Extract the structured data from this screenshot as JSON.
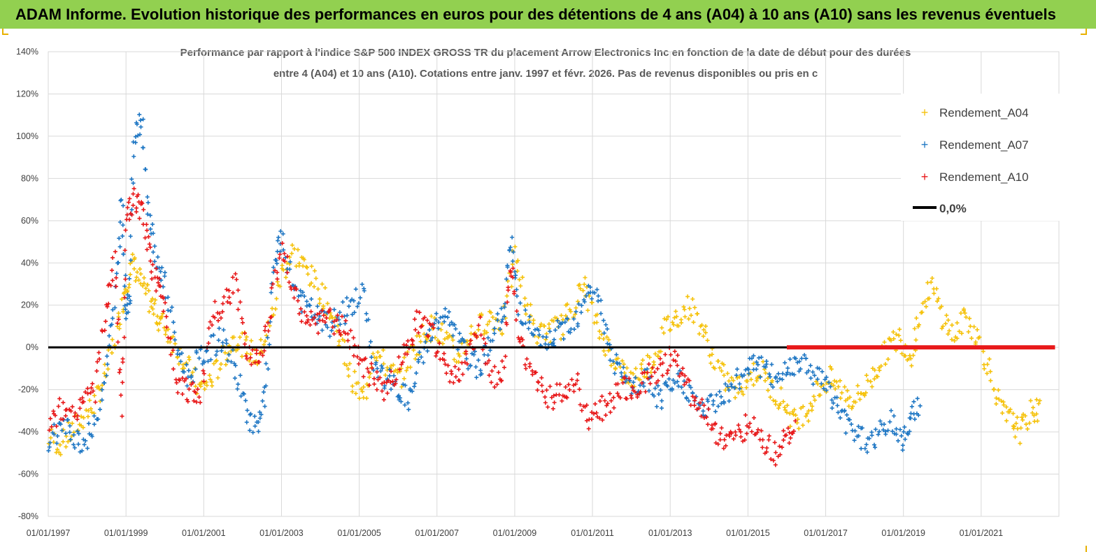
{
  "banner": {
    "title": "ADAM Informe. Evolution historique des performances en euros pour des détentions de 4 ans (A04) à 10 ans (A10) sans les revenus éventuels"
  },
  "colors": {
    "banner": "#92d050",
    "A04": "#f5c20b",
    "A07": "#1f77c4",
    "A10": "#e8191a",
    "zero": "#000000",
    "grid": "#d9d9d9"
  },
  "chart_data": {
    "type": "scatter",
    "title_line1": "Performance par rapport à l'indice S&P 500 INDEX GROSS TR  du placement Arrow Electronics Inc en fonction de la date de début pour des durées",
    "title_line2": "entre 4 (A04) et 10 ans (A10). Cotations entre janv. 1997 et févr. 2026. Pas de revenus disponibles ou pris en c",
    "xlabel": "",
    "ylabel": "",
    "xlim": [
      1997.0,
      2023.0
    ],
    "ylim": [
      -80,
      140
    ],
    "y_ticks": [
      140,
      120,
      100,
      80,
      60,
      40,
      20,
      0,
      -20,
      -40,
      -60,
      -80
    ],
    "y_tick_labels": [
      "140%",
      "120%",
      "100%",
      "80%",
      "60%",
      "40%",
      "20%",
      "0%",
      "-20%",
      "-40%",
      "-60%",
      "-80%"
    ],
    "x_ticks": [
      1997,
      1999,
      2001,
      2003,
      2005,
      2007,
      2009,
      2011,
      2013,
      2015,
      2017,
      2019,
      2021
    ],
    "x_tick_labels": [
      "01/01/1997",
      "01/01/1999",
      "01/01/2001",
      "01/01/2003",
      "01/01/2005",
      "01/01/2007",
      "01/01/2009",
      "01/01/2011",
      "01/01/2013",
      "01/01/2015",
      "01/01/2017",
      "01/01/2019",
      "01/01/2021"
    ],
    "grid": true,
    "legend_position": "top-right",
    "series": [
      {
        "name": "Rendement_A04",
        "marker": "+",
        "x": [
          1997.0,
          1997.3,
          1997.6,
          1997.9,
          1998.2,
          1998.5,
          1998.8,
          1999.0,
          1999.2,
          1999.4,
          1999.6,
          1999.8,
          2000.0,
          2000.3,
          2000.6,
          2000.9,
          2001.2,
          2001.5,
          2001.8,
          2002.1,
          2002.4,
          2002.7,
          2003.0,
          2003.3,
          2003.6,
          2003.9,
          2004.2,
          2004.5,
          2004.8,
          2005.1,
          2005.4,
          2005.7,
          2006.0,
          2006.3,
          2006.6,
          2006.9,
          2007.2,
          2007.5,
          2007.8,
          2008.1,
          2008.4,
          2008.7,
          2009.0,
          2009.3,
          2009.6,
          2009.9,
          2010.2,
          2010.5,
          2010.8,
          2011.1,
          2011.4,
          2011.7,
          2012.0,
          2012.3,
          2012.6,
          2012.9,
          2013.2,
          2013.5,
          2013.8,
          2014.1,
          2014.4,
          2014.7,
          2015.0,
          2015.3,
          2015.6,
          2015.9,
          2016.2,
          2016.5,
          2016.8,
          2017.1,
          2017.4,
          2017.7,
          2018.0,
          2018.3,
          2018.6,
          2018.9,
          2019.2,
          2019.4,
          2019.7,
          2020.0,
          2020.3,
          2020.6,
          2020.9,
          2021.2,
          2021.5,
          2021.8,
          2022.0,
          2022.3
        ],
        "y": [
          -42,
          -46,
          -40,
          -33,
          -26,
          -12,
          10,
          30,
          40,
          30,
          22,
          15,
          10,
          0,
          -10,
          -20,
          -15,
          -5,
          5,
          0,
          -5,
          10,
          35,
          45,
          38,
          30,
          20,
          5,
          -15,
          -25,
          0,
          -10,
          -15,
          -5,
          5,
          10,
          5,
          -5,
          5,
          10,
          15,
          10,
          45,
          20,
          5,
          8,
          10,
          20,
          30,
          10,
          0,
          -10,
          -15,
          -10,
          -5,
          10,
          15,
          20,
          10,
          -5,
          -15,
          -20,
          -15,
          -10,
          -20,
          -25,
          -35,
          -30,
          -20,
          -15,
          -20,
          -25,
          -20,
          -10,
          0,
          5,
          -5,
          15,
          30,
          15,
          5,
          15,
          5,
          -10,
          -30,
          -35,
          -40,
          -30
        ]
      },
      {
        "name": "Rendement_A07",
        "marker": "+",
        "x": [
          1997.0,
          1997.3,
          1997.6,
          1997.9,
          1998.2,
          1998.5,
          1998.7,
          1998.9,
          1999.0,
          1999.1,
          1999.2,
          1999.4,
          1999.6,
          1999.8,
          2000.0,
          2000.3,
          2000.6,
          2000.9,
          2001.2,
          2001.5,
          2001.8,
          2002.1,
          2002.4,
          2002.6,
          2002.8,
          2003.0,
          2003.3,
          2003.6,
          2003.9,
          2004.2,
          2004.5,
          2004.8,
          2005.1,
          2005.4,
          2005.7,
          2006.0,
          2006.3,
          2006.6,
          2006.9,
          2007.2,
          2007.5,
          2007.8,
          2008.1,
          2008.4,
          2008.7,
          2008.9,
          2009.1,
          2009.4,
          2009.7,
          2010.0,
          2010.3,
          2010.6,
          2010.9,
          2011.2,
          2011.5,
          2011.8,
          2012.1,
          2012.4,
          2012.7,
          2013.0,
          2013.3,
          2013.6,
          2013.9,
          2014.2,
          2014.5,
          2014.8,
          2015.1,
          2015.4,
          2015.7,
          2016.0,
          2016.3,
          2016.6,
          2016.9,
          2017.2,
          2017.5,
          2017.8,
          2018.1,
          2018.4,
          2018.7,
          2019.0,
          2019.2
        ],
        "y": [
          -44,
          -38,
          -40,
          -45,
          -38,
          -10,
          20,
          70,
          18,
          25,
          100,
          110,
          60,
          40,
          30,
          0,
          -15,
          -5,
          0,
          5,
          -10,
          -30,
          -40,
          -20,
          40,
          50,
          30,
          20,
          15,
          10,
          15,
          20,
          25,
          -10,
          -15,
          -20,
          -25,
          -5,
          10,
          15,
          5,
          -5,
          -10,
          5,
          15,
          50,
          20,
          10,
          0,
          5,
          10,
          15,
          30,
          20,
          -5,
          -15,
          -20,
          -15,
          -25,
          -20,
          -15,
          -25,
          -30,
          -25,
          -20,
          -15,
          -5,
          -10,
          -15,
          -10,
          -5,
          -10,
          -15,
          -25,
          -35,
          -40,
          -45,
          -40,
          -35,
          -45,
          -30
        ]
      },
      {
        "name": "Rendement_A10",
        "marker": "+",
        "x": [
          1997.0,
          1997.3,
          1997.6,
          1997.9,
          1998.2,
          1998.5,
          1998.7,
          1998.9,
          1999.0,
          1999.2,
          1999.4,
          1999.6,
          1999.8,
          2000.0,
          2000.3,
          2000.6,
          2000.9,
          2001.2,
          2001.5,
          2001.8,
          2002.1,
          2002.4,
          2002.7,
          2003.0,
          2003.3,
          2003.6,
          2003.9,
          2004.2,
          2004.5,
          2004.8,
          2005.1,
          2005.4,
          2005.7,
          2006.0,
          2006.3,
          2006.6,
          2006.9,
          2007.2,
          2007.5,
          2007.8,
          2008.1,
          2008.4,
          2008.7,
          2008.9,
          2009.1,
          2009.4,
          2009.7,
          2010.0,
          2010.3,
          2010.6,
          2010.9,
          2011.2,
          2011.5,
          2011.8,
          2012.1,
          2012.4,
          2012.7,
          2013.0,
          2013.3,
          2013.6,
          2013.9,
          2014.2,
          2014.5,
          2014.8,
          2015.1,
          2015.4,
          2015.7,
          2016.0
        ],
        "y": [
          -40,
          -30,
          -33,
          -25,
          -20,
          20,
          40,
          -30,
          60,
          70,
          65,
          45,
          30,
          20,
          -15,
          -20,
          -25,
          15,
          20,
          30,
          0,
          -5,
          15,
          50,
          25,
          15,
          10,
          15,
          10,
          5,
          -10,
          -15,
          -20,
          -10,
          5,
          15,
          5,
          -10,
          -15,
          -5,
          10,
          -15,
          -10,
          40,
          5,
          -10,
          -20,
          -25,
          -20,
          -15,
          -35,
          -30,
          -25,
          -20,
          -20,
          -15,
          -10,
          -5,
          -10,
          -25,
          -30,
          -40,
          -45,
          -40,
          -35,
          -45,
          -50,
          -40
        ]
      }
    ],
    "zero_line": {
      "name": "0,0%",
      "y": 0
    },
    "a10_flat_segment": {
      "x_start": 2016.0,
      "x_end": 2022.9,
      "y": 0
    }
  }
}
